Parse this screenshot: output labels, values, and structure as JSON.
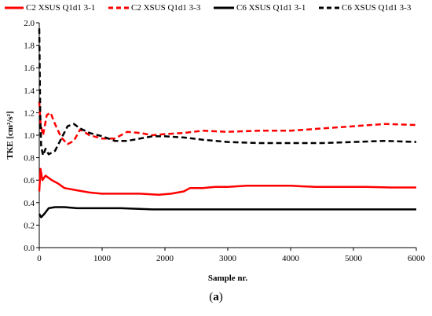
{
  "panel_label_open": "(",
  "panel_label_letter": "a",
  "panel_label_close": ")",
  "chart_data": {
    "type": "line",
    "title": "",
    "xlabel": "Sample nr.",
    "ylabel": "TKE [cm²/s²]",
    "xlim": [
      0,
      6000
    ],
    "ylim": [
      0.0,
      2.0
    ],
    "xticks": [
      0,
      1000,
      2000,
      3000,
      4000,
      5000,
      6000
    ],
    "yticks": [
      "0.0",
      "0.2",
      "0.4",
      "0.6",
      "0.8",
      "1.0",
      "1.2",
      "1.4",
      "1.6",
      "1.8",
      "2.0"
    ],
    "grid": false,
    "legend": "top",
    "series": [
      {
        "name": "C2 XSUS Q1d1 3-1",
        "color": "#ff0000",
        "dash": "solid",
        "x": [
          0,
          20,
          50,
          100,
          150,
          200,
          300,
          400,
          600,
          800,
          1000,
          1300,
          1600,
          1900,
          2100,
          2300,
          2400,
          2600,
          2800,
          3000,
          3300,
          3600,
          4000,
          4400,
          4800,
          5200,
          5600,
          6000
        ],
        "y": [
          0.5,
          0.7,
          0.6,
          0.64,
          0.62,
          0.6,
          0.57,
          0.53,
          0.51,
          0.49,
          0.48,
          0.48,
          0.48,
          0.47,
          0.48,
          0.5,
          0.53,
          0.53,
          0.54,
          0.54,
          0.55,
          0.55,
          0.55,
          0.54,
          0.54,
          0.54,
          0.535,
          0.535
        ]
      },
      {
        "name": "C2 XSUS Q1d1 3-3",
        "color": "#ff0000",
        "dash": "dashed",
        "x": [
          0,
          20,
          60,
          120,
          180,
          250,
          350,
          450,
          550,
          650,
          800,
          1000,
          1200,
          1400,
          1600,
          1800,
          2000,
          2300,
          2600,
          3000,
          3500,
          4000,
          4500,
          5000,
          5500,
          6000
        ],
        "y": [
          1.3,
          1.1,
          1.0,
          1.18,
          1.2,
          1.1,
          0.98,
          0.92,
          0.95,
          1.05,
          1.0,
          0.97,
          0.97,
          1.03,
          1.02,
          1.0,
          1.01,
          1.02,
          1.04,
          1.03,
          1.04,
          1.04,
          1.06,
          1.08,
          1.1,
          1.09
        ]
      },
      {
        "name": "C6 XSUS Q1d1 3-1",
        "color": "#000000",
        "dash": "solid",
        "x": [
          0,
          30,
          80,
          150,
          250,
          400,
          600,
          900,
          1300,
          1800,
          2500,
          3000,
          4000,
          5000,
          6000
        ],
        "y": [
          0.3,
          0.27,
          0.3,
          0.35,
          0.36,
          0.36,
          0.35,
          0.35,
          0.35,
          0.34,
          0.34,
          0.34,
          0.34,
          0.34,
          0.34
        ]
      },
      {
        "name": "C6 XSUS Q1d1 3-3",
        "color": "#000000",
        "dash": "dashed",
        "x": [
          0,
          15,
          30,
          60,
          100,
          150,
          250,
          350,
          450,
          550,
          650,
          800,
          1000,
          1200,
          1400,
          1600,
          1800,
          2000,
          2300,
          2600,
          3000,
          3500,
          4000,
          4500,
          5000,
          5500,
          6000
        ],
        "y": [
          1.95,
          1.2,
          0.9,
          0.82,
          0.88,
          0.83,
          0.86,
          0.97,
          1.08,
          1.1,
          1.06,
          1.02,
          0.99,
          0.95,
          0.95,
          0.97,
          0.99,
          0.99,
          0.98,
          0.96,
          0.94,
          0.93,
          0.93,
          0.93,
          0.94,
          0.95,
          0.94
        ]
      }
    ]
  }
}
